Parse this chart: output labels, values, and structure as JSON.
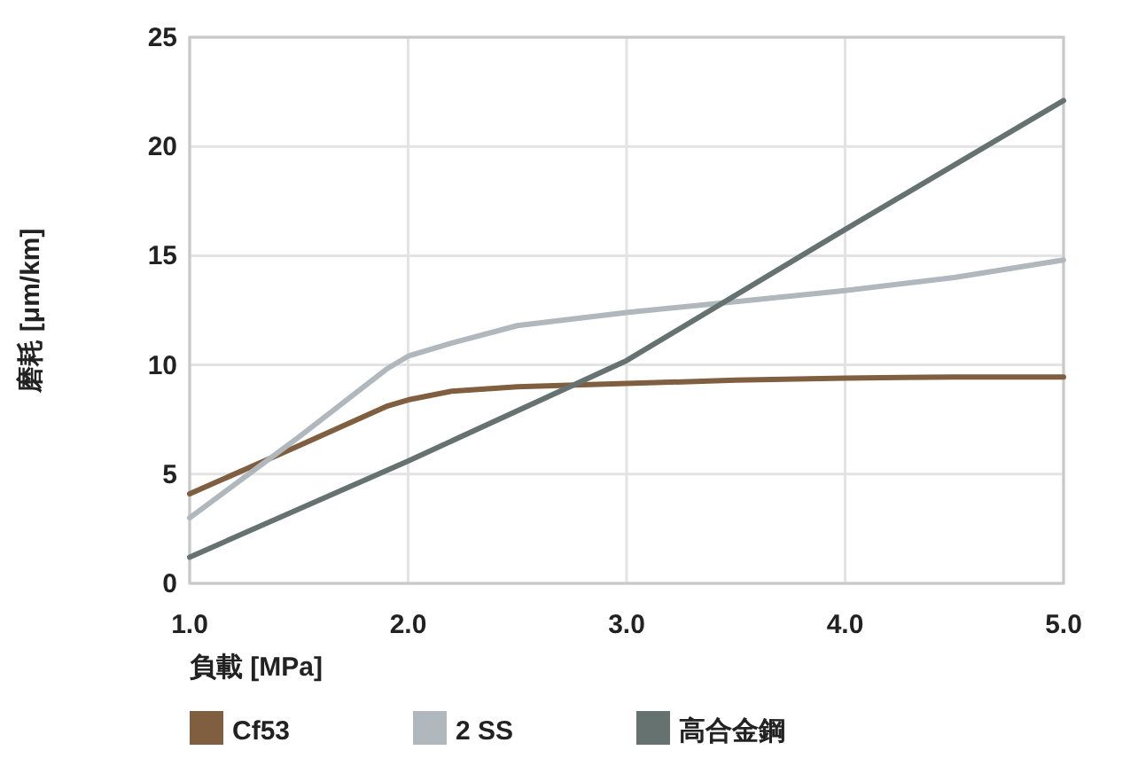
{
  "chart_data": {
    "type": "line",
    "xlabel": "負載 [MPa]",
    "ylabel": "磨耗 [μm/km]",
    "xlim": [
      1,
      5
    ],
    "ylim": [
      0,
      25
    ],
    "xticks": [
      {
        "value": 1,
        "label": "1.0"
      },
      {
        "value": 2,
        "label": "2.0"
      },
      {
        "value": 3,
        "label": "3.0"
      },
      {
        "value": 4,
        "label": "4.0"
      },
      {
        "value": 5,
        "label": "5.0"
      }
    ],
    "yticks": [
      0,
      5,
      10,
      15,
      20,
      25
    ],
    "grid": true,
    "legend": "bottom",
    "series": [
      {
        "name": "Cf53",
        "color": "#7f5f3f",
        "x": [
          1,
          1.5,
          1.9,
          2,
          2.2,
          2.5,
          3,
          3.5,
          4,
          4.5,
          5
        ],
        "values": [
          4.1,
          6.3,
          8.1,
          8.4,
          8.8,
          9.0,
          9.15,
          9.3,
          9.4,
          9.45,
          9.45
        ]
      },
      {
        "name": "2 SS",
        "color": "#b0b8be",
        "x": [
          1,
          1.5,
          1.9,
          2,
          2.2,
          2.5,
          3,
          3.5,
          4,
          4.5,
          5
        ],
        "values": [
          3.0,
          6.7,
          9.8,
          10.4,
          11.0,
          11.8,
          12.4,
          12.9,
          13.4,
          14.0,
          14.8
        ]
      },
      {
        "name": "高合金鋼",
        "color": "#667270",
        "x": [
          1,
          2,
          3,
          4,
          5
        ],
        "values": [
          1.2,
          5.6,
          10.2,
          16.2,
          22.1
        ]
      }
    ]
  }
}
